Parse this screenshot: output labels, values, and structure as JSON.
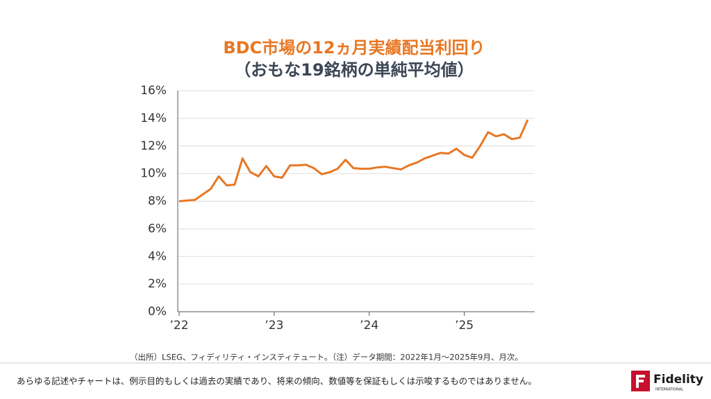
{
  "chart_data": {
    "type": "line",
    "title": "BDC市場の12ヵ月実績配当利回り",
    "subtitle": "（おもな19銘柄の単純平均値）",
    "categories": [
      "’22",
      null,
      null,
      null,
      null,
      null,
      null,
      null,
      null,
      null,
      null,
      null,
      "’23",
      null,
      null,
      null,
      null,
      null,
      null,
      null,
      null,
      null,
      null,
      null,
      "’24",
      null,
      null,
      null,
      null,
      null,
      null,
      null,
      null,
      null,
      null,
      null,
      "’25",
      null,
      null,
      null,
      null,
      null,
      null,
      null,
      null
    ],
    "values": [
      8.0,
      8.05,
      8.1,
      8.5,
      8.9,
      9.8,
      9.15,
      9.2,
      11.1,
      10.1,
      9.8,
      10.55,
      9.8,
      9.7,
      10.6,
      10.6,
      10.65,
      10.4,
      9.95,
      10.1,
      10.35,
      11.0,
      10.4,
      10.35,
      10.35,
      10.45,
      10.5,
      10.4,
      10.3,
      10.6,
      10.8,
      11.1,
      11.3,
      11.5,
      11.45,
      11.8,
      11.35,
      11.15,
      12.0,
      13.0,
      12.7,
      12.85,
      12.5,
      12.6,
      13.9
    ],
    "color": "#e87722",
    "ylim": [
      0,
      16
    ],
    "yticks": [
      {
        "value": 0,
        "label": "0%"
      },
      {
        "value": 2,
        "label": "2%"
      },
      {
        "value": 4,
        "label": "4%"
      },
      {
        "value": 6,
        "label": "6%"
      },
      {
        "value": 8,
        "label": "8%"
      },
      {
        "value": 10,
        "label": "10%"
      },
      {
        "value": 12,
        "label": "12%"
      },
      {
        "value": 14,
        "label": "14%"
      },
      {
        "value": 16,
        "label": "16%"
      }
    ],
    "grid": true,
    "note": "（出所）LSEG、フィディリティ・インスティテュート。（注）データ期間：2022年1月～2025年9月、月次。"
  },
  "footer": {
    "disclaimer": "あらゆる記述やチャートは、例示目的もしくは過去の実績であり、将来の傾向、数値等を保証もしくは示唆するものではありません。",
    "logo": {
      "name": "Fidelity",
      "sub": "INTERNATIONAL"
    }
  }
}
